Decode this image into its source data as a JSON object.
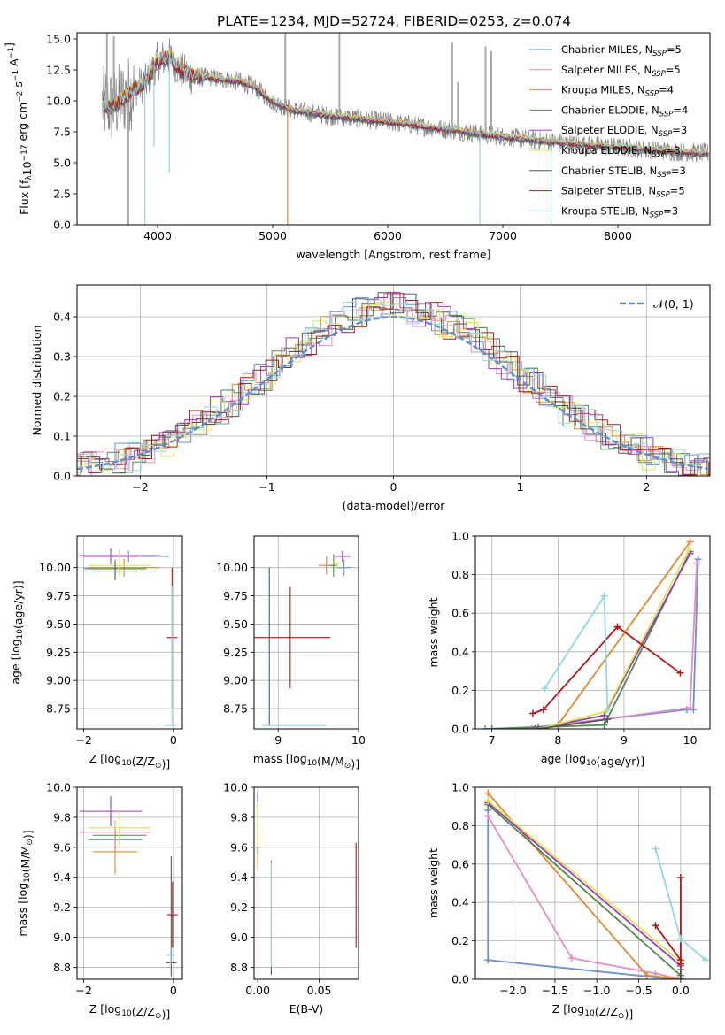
{
  "figure_title": "PLATE=1234, MJD=52724, FIBERID=0253, z=0.074",
  "legend_entries": [
    {
      "name": "Chabrier MILES, N$_{SSP}$=5",
      "label": "Chabrier MILES, N",
      "sub": "SSP",
      "tail": "=5",
      "color": "#6a90d6"
    },
    {
      "name": "Salpeter MILES, N$_{SSP}$=5",
      "label": "Salpeter MILES, N",
      "sub": "SSP",
      "tail": "=5",
      "color": "#e88cc0"
    },
    {
      "name": "Kroupa MILES, N$_{SSP}$=4",
      "label": "Kroupa MILES, N",
      "sub": "SSP",
      "tail": "=4",
      "color": "#e08a2e"
    },
    {
      "name": "Chabrier ELODIE, N$_{SSP}$=4",
      "label": "Chabrier ELODIE, N",
      "sub": "SSP",
      "tail": "=4",
      "color": "#4f8a4f"
    },
    {
      "name": "Salpeter ELODIE, N$_{SSP}$=3",
      "label": "Salpeter ELODIE, N",
      "sub": "SSP",
      "tail": "=3",
      "color": "#9a3bbf"
    },
    {
      "name": "Kroupa ELODIE, N$_{SSP}$=3",
      "label": "Kroupa ELODIE, N",
      "sub": "SSP",
      "tail": "=3",
      "color": "#d8e84a"
    },
    {
      "name": "Chabrier STELIB, N$_{SSP}$=3",
      "label": "Chabrier STELIB, N",
      "sub": "SSP",
      "tail": "=3",
      "color": "#555555"
    },
    {
      "name": "Salpeter STELIB, N$_{SSP}$=5",
      "label": "Salpeter STELIB, N",
      "sub": "SSP",
      "tail": "=5",
      "color": "#b01818"
    },
    {
      "name": "Kroupa STELIB, N$_{SSP}$=3",
      "label": "Kroupa STELIB, N",
      "sub": "SSP",
      "tail": "=3",
      "color": "#8fd8e6"
    }
  ],
  "chart_data": [
    {
      "id": "spectrum",
      "type": "line",
      "xlabel": "wavelength [Angstrom, rest frame]",
      "ylabel": "Flux [f$_\\lambda$10$^{-17}$ erg cm$^{-2}$ s$^{-1}$ A$^{-1}$]",
      "ylabel_parts": {
        "main": "Flux [f",
        "sub1": "λ",
        "a": "10",
        "sup1": "−17",
        "b": " erg cm",
        "sup2": "−2",
        "c": " s",
        "sup3": "−1",
        "d": " A",
        "sup4": "−1",
        "e": "]"
      },
      "xlim": [
        3300,
        8800
      ],
      "ylim": [
        0,
        15.5
      ],
      "xticks": [
        4000,
        5000,
        6000,
        7000,
        8000
      ],
      "yticks": [
        0.0,
        2.5,
        5.0,
        7.5,
        10.0,
        12.5,
        15.0
      ],
      "ytick_labels": [
        "0.0",
        "2.5",
        "5.0",
        "7.5",
        "10.0",
        "12.5",
        "15.0"
      ],
      "grid": false,
      "legend_position": "upper right",
      "observed_color": "#808080",
      "model_knots": {
        "x": [
          3520,
          3600,
          3700,
          3800,
          3900,
          4000,
          4100,
          4200,
          4300,
          4500,
          4700,
          4850,
          5000,
          5200,
          5500,
          6000,
          6500,
          7000,
          7500,
          8000,
          8500,
          8800
        ],
        "y": [
          9.8,
          9.5,
          10.2,
          11.0,
          11.5,
          13.2,
          13.6,
          12.4,
          12.0,
          11.8,
          11.6,
          11.1,
          9.9,
          9.2,
          8.8,
          8.3,
          7.7,
          7.1,
          6.6,
          6.25,
          5.9,
          5.75
        ]
      },
      "model_dips": [
        {
          "x": 3890,
          "y": 0.0
        },
        {
          "x": 4102,
          "y": 4.2
        },
        {
          "x": 3968,
          "y": 6.3
        },
        {
          "x": 5130,
          "y": 0.0
        },
        {
          "x": 6800,
          "y": 0.0
        },
        {
          "x": 7420,
          "y": 0.0
        }
      ],
      "observed_spikes": [
        {
          "x": 3560,
          "y": 15.5
        },
        {
          "x": 3620,
          "y": 15.2
        },
        {
          "x": 3745,
          "y": 0.0
        },
        {
          "x": 5110,
          "y": 15.5
        },
        {
          "x": 5580,
          "y": 15.5
        },
        {
          "x": 6560,
          "y": 14.7
        },
        {
          "x": 6610,
          "y": 11.5
        },
        {
          "x": 6850,
          "y": 14.4
        },
        {
          "x": 6900,
          "y": 14.0
        }
      ]
    },
    {
      "id": "residuals",
      "type": "histogram",
      "xlabel": "(data-model)/error",
      "ylabel": "Normed distribution",
      "xlim": [
        -2.5,
        2.5
      ],
      "ylim": [
        0,
        0.48
      ],
      "xticks": [
        -2,
        -1,
        0,
        1,
        2
      ],
      "yticks": [
        0.0,
        0.1,
        0.2,
        0.3,
        0.4
      ],
      "ytick_labels": [
        "0.0",
        "0.1",
        "0.2",
        "0.3",
        "0.4"
      ],
      "grid": true,
      "bin_width": 0.1,
      "reference_curve": {
        "name": "$\\mathcal{N}(0, 1)$",
        "label": "𝒩(0, 1)",
        "color": "#5b8fd0",
        "style": "dashed"
      },
      "legend_position": "upper right"
    },
    {
      "id": "age_vs_Z",
      "type": "errorbar",
      "xlabel": "Z [log$_{10}$(Z/Z$_\\odot$)]",
      "ylabel": "age  [log$_{10}$(age/yr)]",
      "xlim": [
        -2.15,
        0.2
      ],
      "ylim": [
        8.57,
        10.28
      ],
      "xticks": [
        -2,
        0
      ],
      "yticks": [
        8.75,
        9.0,
        9.25,
        9.5,
        9.75,
        10.0
      ],
      "ytick_labels": [
        "8.75",
        "9.00",
        "9.25",
        "9.50",
        "9.75",
        "10.00"
      ],
      "grid": true,
      "points": [
        {
          "series": 0,
          "x": -1.0,
          "xerr": 0.9,
          "y": 10.1,
          "yerr": 0.05
        },
        {
          "series": 1,
          "x": -1.2,
          "xerr": 0.9,
          "y": 10.11,
          "yerr": 0.05
        },
        {
          "series": 2,
          "x": -1.1,
          "xerr": 0.8,
          "y": 10.0,
          "yerr": 0.08
        },
        {
          "series": 3,
          "x": -1.3,
          "xerr": 0.7,
          "y": 9.99,
          "yerr": 0.08
        },
        {
          "series": 4,
          "x": -1.4,
          "xerr": 0.6,
          "y": 10.1,
          "yerr": 0.07
        },
        {
          "series": 5,
          "x": -1.2,
          "xerr": 0.7,
          "y": 10.02,
          "yerr": 0.1
        },
        {
          "series": 6,
          "x": -1.3,
          "xerr": 0.5,
          "y": 9.97,
          "yerr": 0.08
        },
        {
          "series": 7,
          "x": -0.03,
          "xerr": 0.12,
          "y": 9.38,
          "yerr": 0.62
        },
        {
          "series": 8,
          "x": -0.06,
          "xerr": 0.12,
          "y": 8.6,
          "yerr": 0.0
        },
        {
          "series": 8,
          "x": -0.03,
          "xerr": 0.0,
          "y": 9.22,
          "yerr": 0.62
        }
      ]
    },
    {
      "id": "age_vs_mass",
      "type": "errorbar",
      "xlabel": "mass [log$_{10}$(M/M$_\\odot$)]",
      "ylabel": "",
      "xlim": [
        8.7,
        10.0
      ],
      "ylim": [
        8.57,
        10.28
      ],
      "xticks": [
        9,
        10
      ],
      "yticks": [
        8.75,
        9.0,
        9.25,
        9.5,
        9.75,
        10.0
      ],
      "ytick_labels": [
        "8.75",
        "9.00",
        "9.25",
        "9.50",
        "9.75",
        "10.00"
      ],
      "grid": true,
      "points": [
        {
          "series": 0,
          "x": 9.82,
          "xerr": 0.1,
          "y": 10.0,
          "yerr": 0.07
        },
        {
          "series": 1,
          "x": 9.8,
          "xerr": 0.1,
          "y": 10.1,
          "yerr": 0.05
        },
        {
          "series": 2,
          "x": 9.6,
          "xerr": 0.1,
          "y": 10.02,
          "yerr": 0.08
        },
        {
          "series": 3,
          "x": 9.69,
          "xerr": 0.05,
          "y": 10.02,
          "yerr": 0.1
        },
        {
          "series": 4,
          "x": 9.8,
          "xerr": 0.1,
          "y": 10.1,
          "yerr": 0.05
        },
        {
          "series": 5,
          "x": 9.72,
          "xerr": 0.05,
          "y": 10.04,
          "yerr": 0.05
        },
        {
          "series": 6,
          "x": 8.89,
          "xerr": 0.0,
          "y": 9.3,
          "yerr": 0.7
        },
        {
          "series": 7,
          "x": 9.15,
          "xerr": 0.5,
          "y": 9.38,
          "yerr": 0.45
        },
        {
          "series": 8,
          "x": 9.2,
          "xerr": 0.4,
          "y": 8.6,
          "yerr": 0.0
        },
        {
          "series": 8,
          "x": 8.85,
          "xerr": 0.0,
          "y": 9.3,
          "yerr": 0.7
        }
      ]
    },
    {
      "id": "massweight_vs_age",
      "type": "line",
      "xlabel": "age  [log$_{10}$(age/yr)]",
      "ylabel": "mass weight",
      "xlim": [
        6.75,
        10.3
      ],
      "ylim": [
        0,
        1.0
      ],
      "xticks": [
        7,
        8,
        9,
        10
      ],
      "yticks": [
        0.0,
        0.2,
        0.4,
        0.6,
        0.8,
        1.0
      ],
      "ytick_labels": [
        "0.0",
        "0.2",
        "0.4",
        "0.6",
        "0.8",
        "1.0"
      ],
      "grid": true,
      "series": [
        {
          "series": 0,
          "x": [
            6.9,
            7.7,
            9.95,
            10.05,
            10.12
          ],
          "y": [
            0.0,
            0.01,
            0.1,
            0.1,
            0.88
          ]
        },
        {
          "series": 1,
          "x": [
            7.6,
            10.0,
            10.1
          ],
          "y": [
            0.0,
            0.11,
            0.86
          ]
        },
        {
          "series": 2,
          "x": [
            7.7,
            8.0,
            10.0
          ],
          "y": [
            0.0,
            0.02,
            0.97
          ]
        },
        {
          "series": 3,
          "x": [
            7.0,
            8.7,
            10.0
          ],
          "y": [
            0.0,
            0.02,
            0.92
          ]
        },
        {
          "series": 4,
          "x": [
            7.65,
            8.7,
            10.0
          ],
          "y": [
            0.0,
            0.07,
            0.91
          ]
        },
        {
          "series": 5,
          "x": [
            7.7,
            8.72,
            9.98
          ],
          "y": [
            0.0,
            0.09,
            0.93
          ]
        },
        {
          "series": 6,
          "x": [
            7.7,
            8.75
          ],
          "y": [
            0.0,
            0.05
          ]
        },
        {
          "series": 7,
          "x": [
            7.62,
            7.78,
            8.9,
            9.85
          ],
          "y": [
            0.08,
            0.1,
            0.53,
            0.29
          ]
        },
        {
          "series": 8,
          "x": [
            7.8,
            8.7,
            8.75
          ],
          "y": [
            0.21,
            0.69,
            0.1
          ]
        }
      ]
    },
    {
      "id": "mass_vs_Z",
      "type": "errorbar",
      "xlabel": "Z [log$_{10}$(Z/Z$_\\odot$)]",
      "ylabel": "mass [log$_{10}$(M/M$_\\odot$)]",
      "xlim": [
        -2.15,
        0.2
      ],
      "ylim": [
        8.72,
        10.0
      ],
      "xticks": [
        -2,
        0
      ],
      "yticks": [
        8.8,
        9.0,
        9.2,
        9.4,
        9.6,
        9.8,
        10.0
      ],
      "ytick_labels": [
        "8.8",
        "9.0",
        "9.2",
        "9.4",
        "9.6",
        "9.8",
        "10.0"
      ],
      "grid": true,
      "points": [
        {
          "series": 0,
          "x": -1.3,
          "xerr": 0.6,
          "y": 9.65,
          "yerr": 0.08
        },
        {
          "series": 1,
          "x": -1.3,
          "xerr": 0.8,
          "y": 9.7,
          "yerr": 0.08
        },
        {
          "series": 2,
          "x": -1.3,
          "xerr": 0.5,
          "y": 9.57,
          "yerr": 0.15
        },
        {
          "series": 3,
          "x": -1.2,
          "xerr": 0.6,
          "y": 9.68,
          "yerr": 0.05
        },
        {
          "series": 4,
          "x": -1.4,
          "xerr": 0.7,
          "y": 9.84,
          "yerr": 0.1
        },
        {
          "series": 5,
          "x": -1.2,
          "xerr": 0.7,
          "y": 9.73,
          "yerr": 0.12
        },
        {
          "series": 6,
          "x": -0.05,
          "xerr": 0.12,
          "y": 8.83,
          "yerr": 0.0
        },
        {
          "series": 6,
          "x": -0.05,
          "xerr": 0.0,
          "y": 9.14,
          "yerr": 0.4
        },
        {
          "series": 7,
          "x": -0.02,
          "xerr": 0.12,
          "y": 9.15,
          "yerr": 0.22
        },
        {
          "series": 8,
          "x": -0.06,
          "xerr": 0.1,
          "y": 8.88,
          "yerr": 0.06
        }
      ]
    },
    {
      "id": "mass_vs_EBV",
      "type": "errorbar",
      "xlabel": "E(B-V)",
      "ylabel": "",
      "xlim": [
        -0.003,
        0.082
      ],
      "ylim": [
        8.72,
        10.0
      ],
      "xticks": [
        0.0,
        0.05
      ],
      "xtick_labels": [
        "0.00",
        "0.05"
      ],
      "yticks": [
        8.8,
        9.0,
        9.2,
        9.4,
        9.6,
        9.8,
        10.0
      ],
      "ytick_labels": [
        "8.8",
        "9.0",
        "9.2",
        "9.4",
        "9.6",
        "9.8",
        "10.0"
      ],
      "grid": true,
      "points": [
        {
          "series": 0,
          "x": 0.0,
          "xerr": 0.0,
          "y": 9.72,
          "yerr": 0.15
        },
        {
          "series": 1,
          "x": 0.0,
          "xerr": 0.0,
          "y": 9.85,
          "yerr": 0.12
        },
        {
          "series": 2,
          "x": 0.0,
          "xerr": 0.0,
          "y": 9.6,
          "yerr": 0.15
        },
        {
          "series": 3,
          "x": 0.0,
          "xerr": 0.0,
          "y": 9.7,
          "yerr": 0.15
        },
        {
          "series": 4,
          "x": 0.0,
          "xerr": 0.0,
          "y": 9.84,
          "yerr": 0.12
        },
        {
          "series": 5,
          "x": 0.0,
          "xerr": 0.0,
          "y": 9.75,
          "yerr": 0.15
        },
        {
          "series": 6,
          "x": 0.011,
          "xerr": 0.0,
          "y": 9.13,
          "yerr": 0.38
        },
        {
          "series": 7,
          "x": 0.08,
          "xerr": 0.0,
          "y": 9.28,
          "yerr": 0.35
        },
        {
          "series": 8,
          "x": 0.011,
          "xerr": 0.0,
          "y": 9.15,
          "yerr": 0.35
        }
      ]
    },
    {
      "id": "massweight_vs_Z",
      "type": "line",
      "xlabel": "Z [log$_{10}$(Z/Z$_\\odot$)]",
      "ylabel": "mass weight",
      "xlim": [
        -2.45,
        0.35
      ],
      "ylim": [
        0,
        1.0
      ],
      "xticks": [
        -2.0,
        -1.5,
        -1.0,
        -0.5,
        0.0
      ],
      "xtick_labels": [
        "−2.0",
        "−1.5",
        "−1.0",
        "−0.5",
        "0.0"
      ],
      "yticks": [
        0.0,
        0.2,
        0.4,
        0.6,
        0.8,
        1.0
      ],
      "ytick_labels": [
        "0.0",
        "0.2",
        "0.4",
        "0.6",
        "0.8",
        "1.0"
      ],
      "grid": true,
      "series": [
        {
          "series": 0,
          "x": [
            -2.3,
            -2.3,
            -0.3,
            0.0
          ],
          "y": [
            0.88,
            0.1,
            0.01,
            0.0
          ]
        },
        {
          "series": 1,
          "x": [
            -2.3,
            -1.3,
            -0.3,
            0.0
          ],
          "y": [
            0.85,
            0.11,
            0.03,
            0.0
          ]
        },
        {
          "series": 2,
          "x": [
            -2.3,
            -0.4,
            0.0
          ],
          "y": [
            0.97,
            0.02,
            0.0
          ]
        },
        {
          "series": 3,
          "x": [
            -2.3,
            0.0,
            0.0
          ],
          "y": [
            0.91,
            0.02,
            0.0
          ]
        },
        {
          "series": 4,
          "x": [
            -2.3,
            0.0,
            0.0
          ],
          "y": [
            0.92,
            0.07,
            0.0
          ]
        },
        {
          "series": 5,
          "x": [
            -2.3,
            0.0,
            0.0
          ],
          "y": [
            0.93,
            0.09,
            0.0
          ]
        },
        {
          "series": 6,
          "x": [
            0.0,
            0.0
          ],
          "y": [
            0.0,
            0.05
          ]
        },
        {
          "series": 7,
          "x": [
            -0.3,
            0.0,
            0.0,
            0.0
          ],
          "y": [
            0.28,
            0.1,
            0.53,
            0.08
          ]
        },
        {
          "series": 8,
          "x": [
            -0.3,
            0.0,
            0.3
          ],
          "y": [
            0.68,
            0.21,
            0.1
          ]
        }
      ]
    }
  ]
}
